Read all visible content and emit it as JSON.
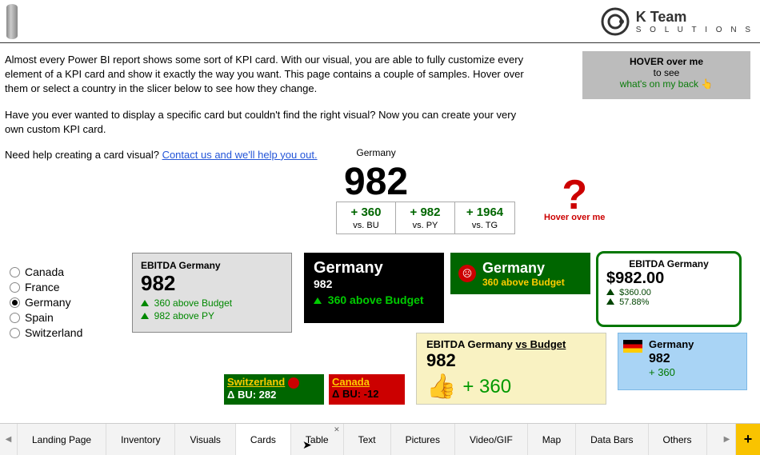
{
  "brand": {
    "name": "K Team",
    "sub": "S O L U T I O N S"
  },
  "intro": {
    "p1": "Almost every Power BI report shows some sort of KPI card. With our visual, you are able to fully customize every element of a KPI card and show it exactly the way you want. This page contains a couple of samples. Hover over them or select a country in the slicer below to see how they change.",
    "p2": "Have you ever wanted to display a specific card but couldn't find the right visual? Now you can create your very own custom KPI card.",
    "p3_prefix": "Need help creating a card visual? ",
    "p3_link": "Contact us and we'll help you out."
  },
  "hoverBox": {
    "l1": "HOVER over me",
    "l2": "to see",
    "l3": "what's on my back 👆"
  },
  "centerKpi": {
    "country": "Germany",
    "value": "982",
    "cells": [
      {
        "v": "+ 360",
        "lbl": "vs. BU"
      },
      {
        "v": "+ 982",
        "lbl": "vs. PY"
      },
      {
        "v": "+ 1964",
        "lbl": "vs. TG"
      }
    ]
  },
  "hoverRed": {
    "txt": "Hover over me",
    "q": "?"
  },
  "slicer": {
    "items": [
      "Canada",
      "France",
      "Germany",
      "Spain",
      "Switzerland"
    ],
    "selectedIndex": 2
  },
  "card1": {
    "title": "EBITDA Germany",
    "val": "982",
    "row1": "360 above Budget",
    "row2": "982 above PY"
  },
  "card2": {
    "t": "Germany",
    "v": "982",
    "r": "360 above Budget"
  },
  "card3": {
    "t": "Germany",
    "r": "360 above Budget"
  },
  "card4": {
    "t": "EBITDA Germany",
    "v": "$982.00",
    "r1": "$360.00",
    "r2": "57.88%"
  },
  "card5": {
    "t_prefix": "EBITDA Germany ",
    "t_underline": "vs Budget",
    "v": "982",
    "plus": "+ 360"
  },
  "card6": {
    "t": "Germany",
    "v": "982",
    "r": "+ 360"
  },
  "card7": {
    "t": "Switzerland",
    "d": "Δ BU: 282"
  },
  "card8": {
    "t": "Canada",
    "d": "Δ BU: -12"
  },
  "tabs": {
    "items": [
      "Landing Page",
      "Inventory",
      "Visuals",
      "Cards",
      "Table",
      "Text",
      "Pictures",
      "Video/GIF",
      "Map",
      "Data Bars",
      "Others"
    ],
    "activeIndex": 3,
    "closeIndex": 4
  }
}
